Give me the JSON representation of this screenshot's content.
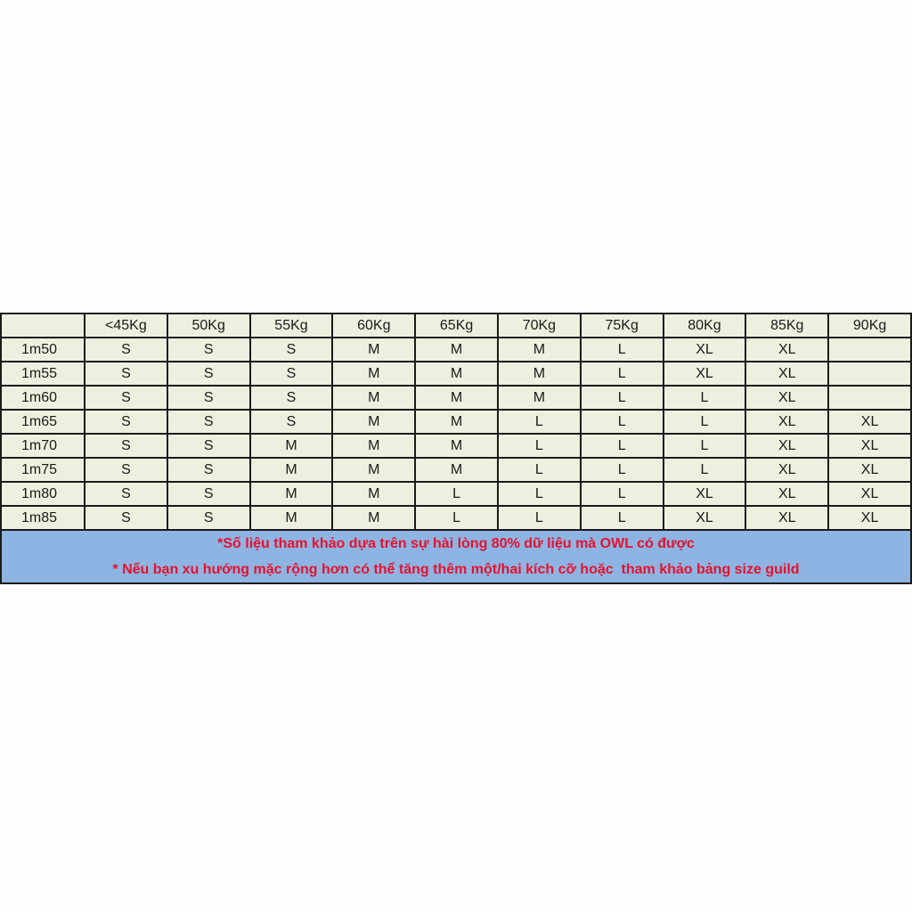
{
  "table": {
    "columns": [
      "",
      "<45Kg",
      "50Kg",
      "55Kg",
      "60Kg",
      "65Kg",
      "70Kg",
      "75Kg",
      "80Kg",
      "85Kg",
      "90Kg"
    ],
    "rows": [
      {
        "height": "1m50",
        "sizes": [
          "S",
          "S",
          "S",
          "M",
          "M",
          "M",
          "L",
          "XL",
          "XL",
          ""
        ]
      },
      {
        "height": "1m55",
        "sizes": [
          "S",
          "S",
          "S",
          "M",
          "M",
          "M",
          "L",
          "XL",
          "XL",
          ""
        ]
      },
      {
        "height": "1m60",
        "sizes": [
          "S",
          "S",
          "S",
          "M",
          "M",
          "M",
          "L",
          "L",
          "XL",
          ""
        ]
      },
      {
        "height": "1m65",
        "sizes": [
          "S",
          "S",
          "S",
          "M",
          "M",
          "L",
          "L",
          "L",
          "XL",
          "XL"
        ]
      },
      {
        "height": "1m70",
        "sizes": [
          "S",
          "S",
          "M",
          "M",
          "M",
          "L",
          "L",
          "L",
          "XL",
          "XL"
        ]
      },
      {
        "height": "1m75",
        "sizes": [
          "S",
          "S",
          "M",
          "M",
          "M",
          "L",
          "L",
          "L",
          "XL",
          "XL"
        ]
      },
      {
        "height": "1m80",
        "sizes": [
          "S",
          "S",
          "M",
          "M",
          "L",
          "L",
          "L",
          "XL",
          "XL",
          "XL"
        ]
      },
      {
        "height": "1m85",
        "sizes": [
          "S",
          "S",
          "M",
          "M",
          "L",
          "L",
          "L",
          "XL",
          "XL",
          "XL"
        ]
      }
    ],
    "notes": [
      "*Số liệu tham khảo dựa trên sự hài lòng 80% dữ liệu mà OWL có được",
      "* Nếu bạn xu hướng mặc rộng hơn có thể tăng thêm một/hai kích cỡ hoặc  tham khảo bảng size guild"
    ]
  },
  "colors": {
    "cell_bg": "#ebf1de",
    "note_bg": "#8db4e2",
    "note_text": "#e8112d"
  }
}
